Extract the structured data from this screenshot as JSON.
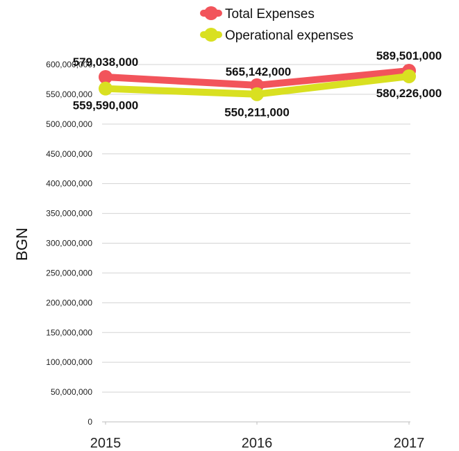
{
  "chart_data": {
    "type": "line",
    "title": "",
    "xlabel": "",
    "ylabel": "BGN",
    "categories": [
      "2015",
      "2016",
      "2017"
    ],
    "ylim": [
      0,
      600000000
    ],
    "y_ticks": [
      0,
      50000000,
      100000000,
      150000000,
      200000000,
      250000000,
      300000000,
      350000000,
      400000000,
      450000000,
      500000000,
      550000000,
      600000000
    ],
    "y_tick_labels": [
      "0",
      "50,000,000",
      "100,000,000",
      "150,000,000",
      "200,000,000",
      "250,000,000",
      "300,000,000",
      "350,000,000",
      "400,000,000",
      "450,000,000",
      "500,000,000",
      "550,000,000",
      "600,000,000"
    ],
    "grid": true,
    "legend_position": "top-center",
    "series": [
      {
        "name": "Total Expenses",
        "color": "#f2545b",
        "values": [
          579038000,
          565142000,
          589501000
        ],
        "value_labels": [
          "579,038,000",
          "565,142,000",
          "589,501,000"
        ]
      },
      {
        "name": "Operational expenses",
        "color": "#d9e021",
        "values": [
          559590000,
          550211000,
          580226000
        ],
        "value_labels": [
          "559,590,000",
          "550,211,000",
          "580,226,000"
        ]
      }
    ]
  }
}
